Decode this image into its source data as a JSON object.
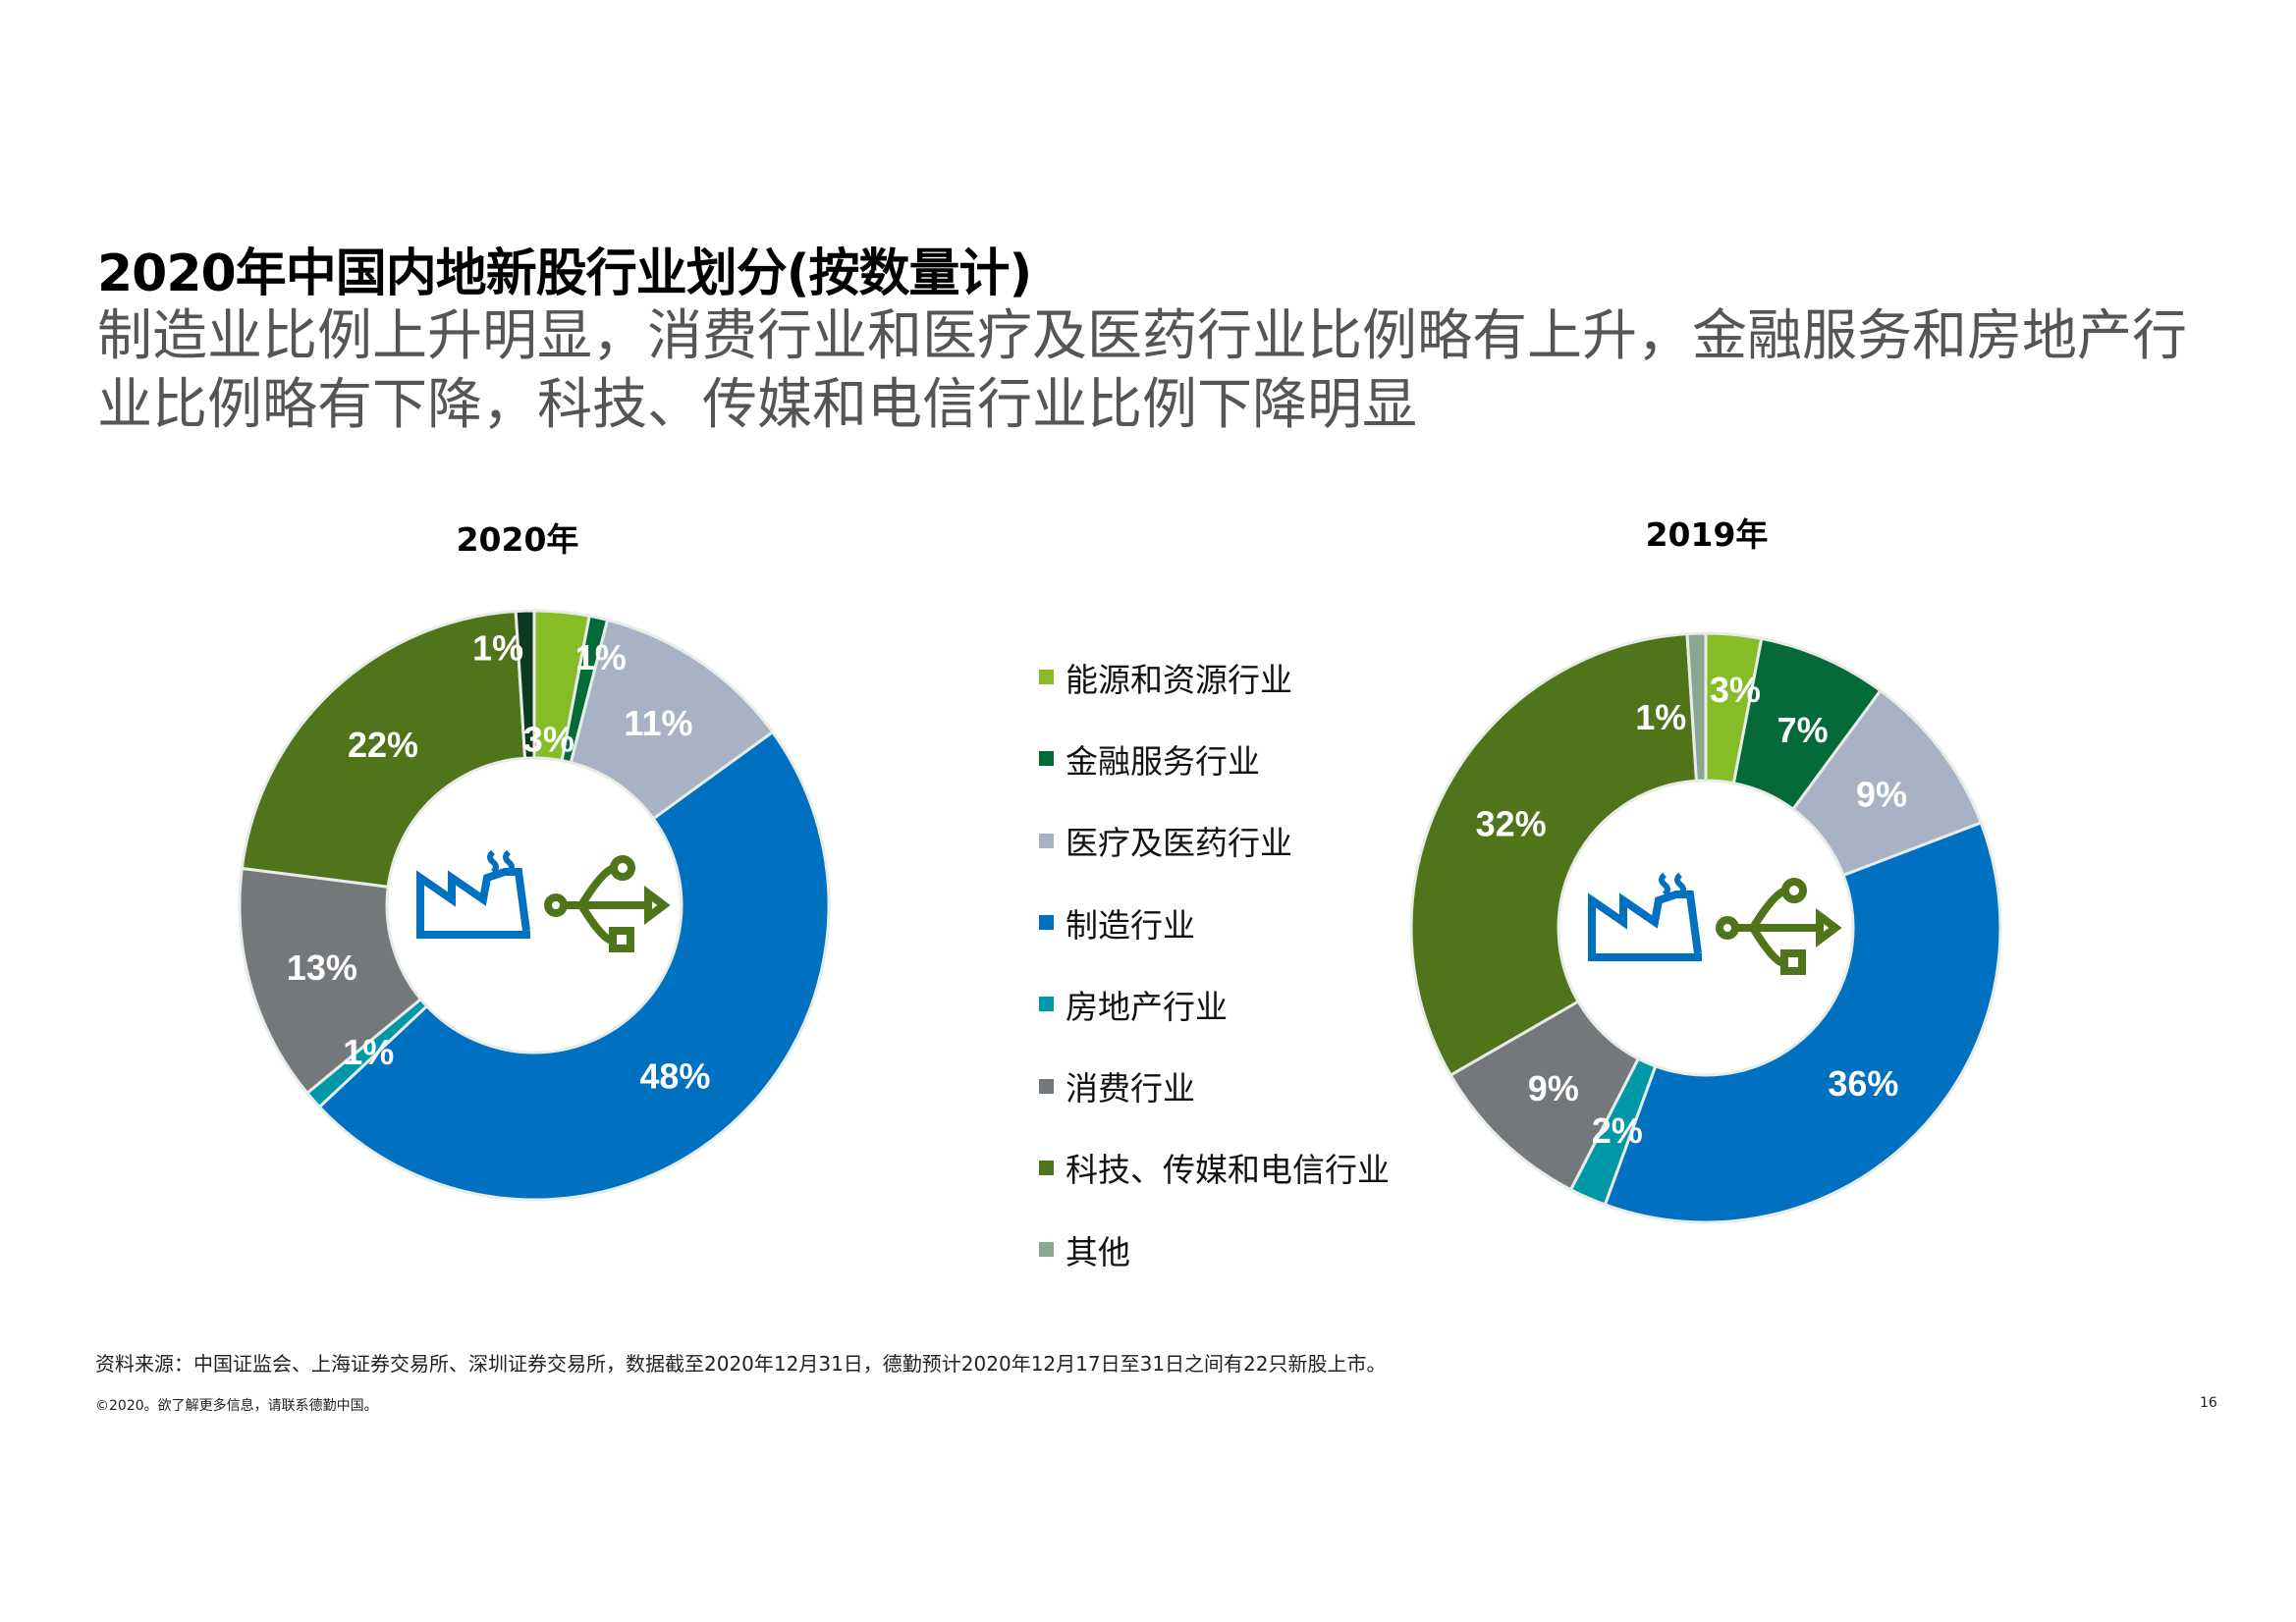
{
  "header": {
    "title": "2020年中国内地新股行业划分(按数量计)",
    "subtitle": "制造业比例上升明显，消费行业和医疗及医药行业比例略有上升，金融服务和房地产行业比例略有下降，科技、传媒和电信行业比例下降明显"
  },
  "legend": [
    {
      "label": "能源和资源行业",
      "color": "#86bc25"
    },
    {
      "label": "金融服务行业",
      "color": "#046a38"
    },
    {
      "label": "医疗及医药行业",
      "color": "#a7b3c5"
    },
    {
      "label": "制造行业",
      "color": "#0070c0"
    },
    {
      "label": "房地产行业",
      "color": "#0097a9"
    },
    {
      "label": "消费行业",
      "color": "#75787b"
    },
    {
      "label": "科技、传媒和电信行业",
      "color": "#4f741a"
    },
    {
      "label": "其他",
      "color": "#8aa68e"
    }
  ],
  "chart_data": [
    {
      "type": "pie",
      "variant": "donut",
      "title": "2020年",
      "categories": [
        "能源和资源行业",
        "金融服务行业",
        "医疗及医药行业",
        "制造行业",
        "房地产行业",
        "消费行业",
        "科技、传媒和电信行业",
        "其他"
      ],
      "values": [
        3,
        1,
        11,
        48,
        1,
        13,
        22,
        1
      ],
      "labels": [
        "3%",
        "1%",
        "11%",
        "48%",
        "1%",
        "13%",
        "22%",
        "1%"
      ],
      "slice_color_overrides": {
        "其他": "#0b3a20"
      },
      "center_icons": [
        "factory-icon",
        "usb-icon"
      ]
    },
    {
      "type": "pie",
      "variant": "donut",
      "title": "2019年",
      "categories": [
        "能源和资源行业",
        "金融服务行业",
        "医疗及医药行业",
        "制造行业",
        "房地产行业",
        "消费行业",
        "科技、传媒和电信行业",
        "其他"
      ],
      "values": [
        3,
        7,
        9,
        36,
        2,
        9,
        32,
        1
      ],
      "labels": [
        "3%",
        "7%",
        "9%",
        "36%",
        "2%",
        "9%",
        "32%",
        "1%"
      ],
      "center_icons": [
        "factory-icon",
        "usb-icon"
      ]
    }
  ],
  "footer": {
    "source": "资料来源：中国证监会、上海证券交易所、深圳证券交易所，数据截至2020年12月31日，德勤预计2020年12月17日至31日之间有22只新股上市。",
    "copyright": "©2020。欲了解更多信息，请联系德勤中国。",
    "page_number": "16"
  }
}
